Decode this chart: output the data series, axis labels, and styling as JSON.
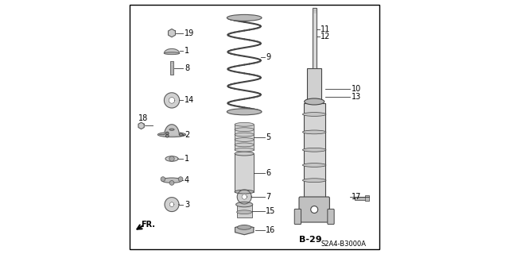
{
  "background_color": "#ffffff",
  "page_ref": "B-29",
  "part_number": "S2A4-B3000A",
  "label_fontsize": 7,
  "ref_fontsize": 8
}
